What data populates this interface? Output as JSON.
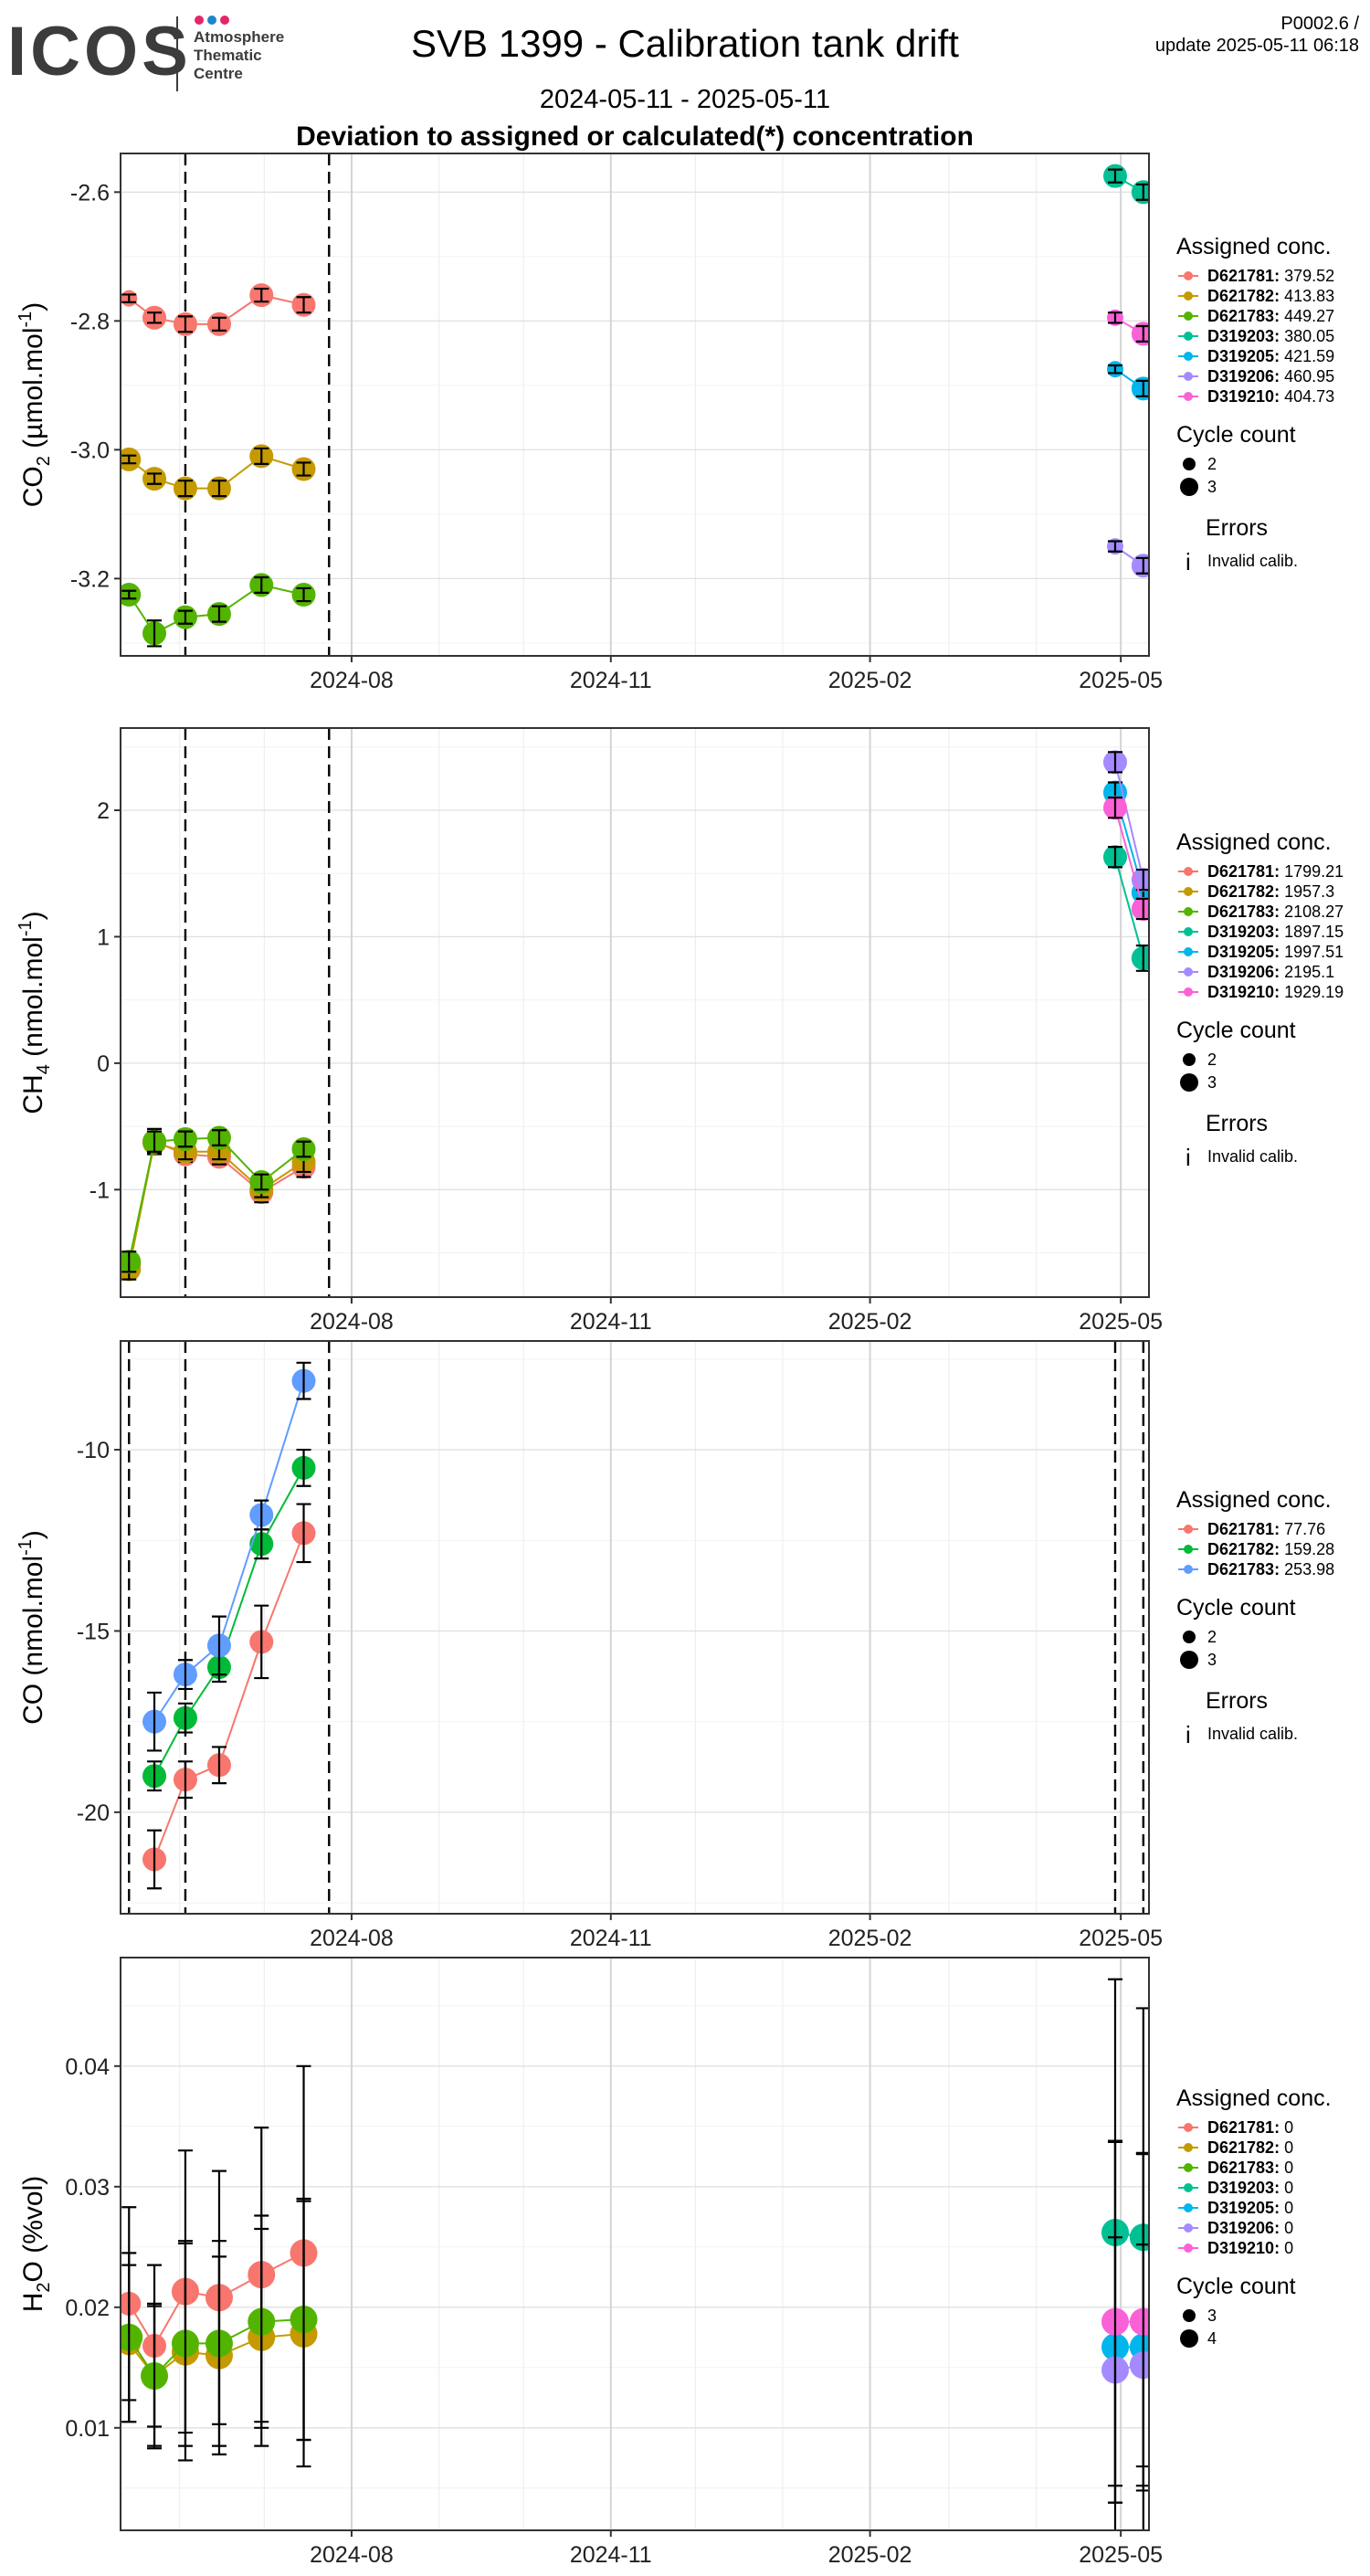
{
  "header": {
    "logo_text": "ICOS",
    "logo_sub": [
      "Atmosphere",
      "Thematic",
      "Centre"
    ],
    "title": "SVB 1399 - Calibration tank drift",
    "subtitle": "2024-05-11 - 2025-05-11",
    "subtitle2": "Deviation to assigned or calculated(*) concentration",
    "version": "P0002.6 /",
    "update": "update  2025-05-11 06:18"
  },
  "colors": {
    "D621781": "#F8766D",
    "D621782": "#C49A00",
    "D621783": "#53B400",
    "D319203": "#00C094",
    "D319205": "#00B6EB",
    "D319206": "#A58AFF",
    "D319210": "#FB61D7",
    "co_D621781": "#F8766D",
    "co_D621782": "#00BA38",
    "co_D621783": "#619CFF"
  },
  "legend_common": {
    "assigned_title": "Assigned conc.",
    "cycle_title": "Cycle count",
    "errors_title": "Errors",
    "errors_symbol": "i",
    "errors_label": "Invalid calib."
  },
  "chart_data": [
    {
      "type": "scatter",
      "id": "co2",
      "ylabel_main": "CO",
      "ylabel_sub": "2",
      "ylabel_unit": " (µmol.mol",
      "ylabel_sup": "-1",
      "ylabel_end": ")",
      "x_ticks": [
        "2024-08",
        "2024-11",
        "2025-02",
        "2025-05"
      ],
      "xlim": [
        "2024-05-11",
        "2025-05-11"
      ],
      "ylim": [
        -3.32,
        -2.54
      ],
      "y_ticks": [
        -2.6,
        -2.8,
        -3.0,
        -3.2
      ],
      "y_tick_labels": [
        "-2.6",
        "-2.8",
        "-3.0",
        "-3.2"
      ],
      "vlines": [
        "2024-06-03",
        "2024-07-24"
      ],
      "legend": [
        {
          "tank": "D621781",
          "value": "379.52"
        },
        {
          "tank": "D621782",
          "value": "413.83"
        },
        {
          "tank": "D621783",
          "value": "449.27"
        },
        {
          "tank": "D319203",
          "value": "380.05"
        },
        {
          "tank": "D319205",
          "value": "421.59"
        },
        {
          "tank": "D319206",
          "value": "460.95"
        },
        {
          "tank": "D319210",
          "value": "404.73"
        }
      ],
      "cycle_legend": [
        "2",
        "3"
      ],
      "series": [
        {
          "tank": "D621781",
          "x": [
            "2024-05-14",
            "2024-05-23",
            "2024-06-03",
            "2024-06-15",
            "2024-06-30",
            "2024-07-15"
          ],
          "y": [
            -2.765,
            -2.795,
            -2.805,
            -2.805,
            -2.76,
            -2.775
          ],
          "err": [
            0.006,
            0.008,
            0.012,
            0.01,
            0.01,
            0.012
          ],
          "size": [
            2,
            3,
            3,
            3,
            3,
            3
          ]
        },
        {
          "tank": "D621782",
          "x": [
            "2024-05-14",
            "2024-05-23",
            "2024-06-03",
            "2024-06-15",
            "2024-06-30",
            "2024-07-15"
          ],
          "y": [
            -3.015,
            -3.045,
            -3.06,
            -3.06,
            -3.01,
            -3.03
          ],
          "err": [
            0.006,
            0.008,
            0.012,
            0.012,
            0.012,
            0.01
          ],
          "size": [
            3,
            3,
            3,
            3,
            3,
            3
          ]
        },
        {
          "tank": "D621783",
          "x": [
            "2024-05-14",
            "2024-05-23",
            "2024-06-03",
            "2024-06-15",
            "2024-06-30",
            "2024-07-15"
          ],
          "y": [
            -3.225,
            -3.285,
            -3.26,
            -3.255,
            -3.21,
            -3.225
          ],
          "err": [
            0.006,
            0.02,
            0.01,
            0.012,
            0.012,
            0.01
          ],
          "size": [
            3,
            3,
            3,
            3,
            3,
            3
          ]
        },
        {
          "tank": "D319203",
          "x": [
            "2025-04-29",
            "2025-05-09"
          ],
          "y": [
            -2.575,
            -2.6
          ],
          "err": [
            0.01,
            0.012
          ],
          "size": [
            3,
            3
          ]
        },
        {
          "tank": "D319205",
          "x": [
            "2025-04-29",
            "2025-05-09"
          ],
          "y": [
            -2.875,
            -2.905
          ],
          "err": [
            0.006,
            0.012
          ],
          "size": [
            2,
            3
          ]
        },
        {
          "tank": "D319206",
          "x": [
            "2025-04-29",
            "2025-05-09"
          ],
          "y": [
            -3.15,
            -3.18
          ],
          "err": [
            0.008,
            0.012
          ],
          "size": [
            2,
            3
          ]
        },
        {
          "tank": "D319210",
          "x": [
            "2025-04-29",
            "2025-05-09"
          ],
          "y": [
            -2.795,
            -2.82
          ],
          "err": [
            0.008,
            0.012
          ],
          "size": [
            2,
            3
          ]
        }
      ]
    },
    {
      "type": "scatter",
      "id": "ch4",
      "ylabel_main": "CH",
      "ylabel_sub": "4",
      "ylabel_unit": " (nmol.mol",
      "ylabel_sup": "-1",
      "ylabel_end": ")",
      "x_ticks": [
        "2024-08",
        "2024-11",
        "2025-02",
        "2025-05"
      ],
      "xlim": [
        "2024-05-11",
        "2025-05-11"
      ],
      "ylim": [
        -1.85,
        2.65
      ],
      "y_ticks": [
        2,
        1,
        0,
        -1
      ],
      "y_tick_labels": [
        "2",
        "1",
        "0",
        "-1"
      ],
      "vlines": [
        "2024-06-03",
        "2024-07-24"
      ],
      "legend": [
        {
          "tank": "D621781",
          "value": "1799.21"
        },
        {
          "tank": "D621782",
          "value": "1957.3"
        },
        {
          "tank": "D621783",
          "value": "2108.27"
        },
        {
          "tank": "D319203",
          "value": "1897.15"
        },
        {
          "tank": "D319205",
          "value": "1997.51"
        },
        {
          "tank": "D319206",
          "value": "2195.1"
        },
        {
          "tank": "D319210",
          "value": "1929.19"
        }
      ],
      "cycle_legend": [
        "2",
        "3"
      ],
      "series": [
        {
          "tank": "D621781",
          "x": [
            "2024-05-14",
            "2024-05-23",
            "2024-06-03",
            "2024-06-15",
            "2024-06-30",
            "2024-07-15"
          ],
          "y": [
            -1.6,
            -0.62,
            -0.72,
            -0.74,
            -1.02,
            -0.82
          ],
          "err": [
            0.08,
            0.1,
            0.06,
            0.06,
            0.08,
            0.08
          ],
          "size": [
            3,
            3,
            3,
            3,
            3,
            3
          ]
        },
        {
          "tank": "D621782",
          "x": [
            "2024-05-14",
            "2024-05-23",
            "2024-06-03",
            "2024-06-15",
            "2024-06-30",
            "2024-07-15"
          ],
          "y": [
            -1.63,
            -0.63,
            -0.7,
            -0.7,
            -1.0,
            -0.78
          ],
          "err": [
            0.08,
            0.08,
            0.06,
            0.06,
            0.06,
            0.08
          ],
          "size": [
            3,
            3,
            3,
            3,
            3,
            3
          ]
        },
        {
          "tank": "D621783",
          "x": [
            "2024-05-14",
            "2024-05-23",
            "2024-06-03",
            "2024-06-15",
            "2024-06-30",
            "2024-07-15"
          ],
          "y": [
            -1.57,
            -0.62,
            -0.6,
            -0.59,
            -0.94,
            -0.68
          ],
          "err": [
            0.08,
            0.08,
            0.06,
            0.06,
            0.06,
            0.06
          ],
          "size": [
            3,
            3,
            3,
            3,
            3,
            3
          ]
        },
        {
          "tank": "D319203",
          "x": [
            "2025-04-29",
            "2025-05-09"
          ],
          "y": [
            1.63,
            0.83
          ],
          "err": [
            0.08,
            0.1
          ],
          "size": [
            3,
            3
          ]
        },
        {
          "tank": "D319205",
          "x": [
            "2025-04-29",
            "2025-05-09"
          ],
          "y": [
            2.14,
            1.35
          ],
          "err": [
            0.08,
            0.08
          ],
          "size": [
            3,
            3
          ]
        },
        {
          "tank": "D319206",
          "x": [
            "2025-04-29",
            "2025-05-09"
          ],
          "y": [
            2.38,
            1.45
          ],
          "err": [
            0.08,
            0.08
          ],
          "size": [
            3,
            3
          ]
        },
        {
          "tank": "D319210",
          "x": [
            "2025-04-29",
            "2025-05-09"
          ],
          "y": [
            2.02,
            1.22
          ],
          "err": [
            0.08,
            0.08
          ],
          "size": [
            3,
            3
          ]
        }
      ]
    },
    {
      "type": "scatter",
      "id": "co",
      "ylabel_main": "CO",
      "ylabel_sub": "",
      "ylabel_unit": " (nmol.mol",
      "ylabel_sup": "-1",
      "ylabel_end": ")",
      "x_ticks": [
        "2024-08",
        "2024-11",
        "2025-02",
        "2025-05"
      ],
      "xlim": [
        "2024-05-11",
        "2025-05-11"
      ],
      "ylim": [
        -22.8,
        -7.0
      ],
      "y_ticks": [
        -10,
        -15,
        -20
      ],
      "y_tick_labels": [
        "-10",
        "-15",
        "-20"
      ],
      "vlines": [
        "2024-05-14",
        "2024-06-03",
        "2024-07-24",
        "2025-04-29",
        "2025-05-09"
      ],
      "legend": [
        {
          "tank": "D621781",
          "value": "77.76",
          "color_key": "co_D621781"
        },
        {
          "tank": "D621782",
          "value": "159.28",
          "color_key": "co_D621782"
        },
        {
          "tank": "D621783",
          "value": "253.98",
          "color_key": "co_D621783"
        }
      ],
      "cycle_legend": [
        "2",
        "3"
      ],
      "series": [
        {
          "tank": "D621781",
          "color_key": "co_D621781",
          "x": [
            "2024-05-23",
            "2024-06-03",
            "2024-06-15",
            "2024-06-30",
            "2024-07-15"
          ],
          "y": [
            -21.3,
            -19.1,
            -18.7,
            -15.3,
            -12.3
          ],
          "err": [
            0.8,
            0.5,
            0.5,
            1.0,
            0.8
          ],
          "size": [
            3,
            3,
            3,
            3,
            3
          ]
        },
        {
          "tank": "D621782",
          "color_key": "co_D621782",
          "x": [
            "2024-05-23",
            "2024-06-03",
            "2024-06-15",
            "2024-06-30",
            "2024-07-15"
          ],
          "y": [
            -19.0,
            -17.4,
            -16.0,
            -12.6,
            -10.5
          ],
          "err": [
            0.4,
            0.4,
            0.4,
            0.4,
            0.5
          ],
          "size": [
            3,
            3,
            3,
            3,
            3
          ]
        },
        {
          "tank": "D621783",
          "color_key": "co_D621783",
          "x": [
            "2024-05-23",
            "2024-06-03",
            "2024-06-15",
            "2024-06-30",
            "2024-07-15"
          ],
          "y": [
            -17.5,
            -16.2,
            -15.4,
            -11.8,
            -8.1
          ],
          "err": [
            0.8,
            0.4,
            0.8,
            0.4,
            0.5
          ],
          "size": [
            3,
            3,
            3,
            3,
            3
          ]
        }
      ]
    },
    {
      "type": "scatter",
      "id": "h2o",
      "ylabel_main": "H",
      "ylabel_sub": "2",
      "ylabel_unit": "O (%vol)",
      "ylabel_sup": "",
      "ylabel_end": "",
      "x_ticks": [
        "2024-08",
        "2024-11",
        "2025-02",
        "2025-05"
      ],
      "xlim": [
        "2024-05-11",
        "2025-05-11"
      ],
      "ylim": [
        0.0015,
        0.049
      ],
      "y_ticks": [
        0.04,
        0.03,
        0.02,
        0.01
      ],
      "y_tick_labels": [
        "0.04",
        "0.03",
        "0.02",
        "0.01"
      ],
      "vlines": [],
      "legend": [
        {
          "tank": "D621781",
          "value": "0"
        },
        {
          "tank": "D621782",
          "value": "0"
        },
        {
          "tank": "D621783",
          "value": "0"
        },
        {
          "tank": "D319203",
          "value": "0"
        },
        {
          "tank": "D319205",
          "value": "0"
        },
        {
          "tank": "D319206",
          "value": "0"
        },
        {
          "tank": "D319210",
          "value": "0"
        }
      ],
      "cycle_legend": [
        "3",
        "4"
      ],
      "series": [
        {
          "tank": "D621781",
          "x": [
            "2024-05-14",
            "2024-05-23",
            "2024-06-03",
            "2024-06-15",
            "2024-06-30",
            "2024-07-15"
          ],
          "y": [
            0.0203,
            0.0168,
            0.0213,
            0.0208,
            0.0227,
            0.0245
          ],
          "err": [
            0.008,
            0.0067,
            0.0117,
            0.0105,
            0.0122,
            0.0155
          ],
          "size": [
            3,
            3,
            4,
            4,
            4,
            4
          ]
        },
        {
          "tank": "D621782",
          "x": [
            "2024-05-14",
            "2024-05-23",
            "2024-06-03",
            "2024-06-15",
            "2024-06-30",
            "2024-07-15"
          ],
          "y": [
            0.017,
            0.0143,
            0.0163,
            0.016,
            0.0175,
            0.0178
          ],
          "err": [
            0.0065,
            0.006,
            0.009,
            0.0082,
            0.009,
            0.011
          ],
          "size": [
            3,
            3,
            4,
            4,
            4,
            4
          ]
        },
        {
          "tank": "D621783",
          "x": [
            "2024-05-14",
            "2024-05-23",
            "2024-06-03",
            "2024-06-15",
            "2024-06-30",
            "2024-07-15"
          ],
          "y": [
            0.0175,
            0.0143,
            0.017,
            0.017,
            0.0188,
            0.019
          ],
          "err": [
            0.007,
            0.0058,
            0.0085,
            0.0085,
            0.0088,
            0.01
          ],
          "size": [
            4,
            4,
            4,
            4,
            4,
            4
          ]
        },
        {
          "tank": "D319203",
          "x": [
            "2025-04-29",
            "2025-05-09"
          ],
          "y": [
            0.0262,
            0.0258
          ],
          "err": [
            0.021,
            0.019
          ],
          "size": [
            4,
            4
          ]
        },
        {
          "tank": "D319205",
          "x": [
            "2025-04-29",
            "2025-05-09"
          ],
          "y": [
            0.0167,
            0.0167
          ],
          "err": [
            0.017,
            0.016
          ],
          "size": [
            4,
            4
          ]
        },
        {
          "tank": "D319206",
          "x": [
            "2025-04-29",
            "2025-05-09"
          ],
          "y": [
            0.0148,
            0.0152
          ],
          "err": [
            0.011,
            0.01
          ],
          "size": [
            4,
            4
          ]
        },
        {
          "tank": "D319210",
          "x": [
            "2025-04-29",
            "2025-05-09"
          ],
          "y": [
            0.0188,
            0.0188
          ],
          "err": [
            0.015,
            0.014
          ],
          "size": [
            4,
            4
          ]
        }
      ]
    }
  ]
}
